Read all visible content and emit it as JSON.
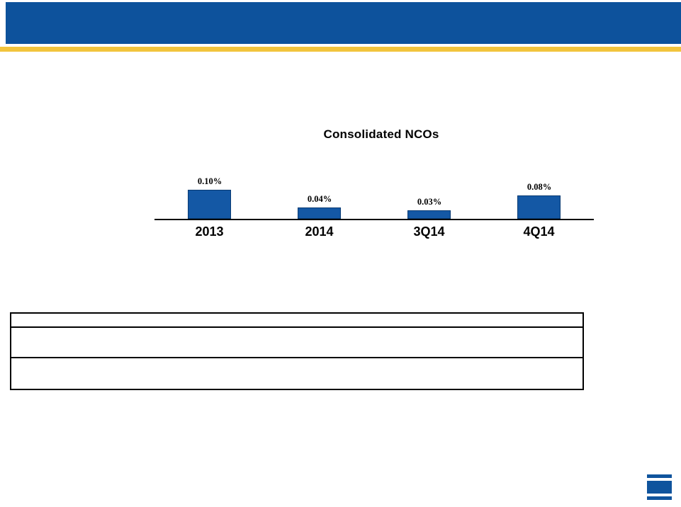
{
  "slide": {
    "header_color": "#0D529C",
    "stripe_color": "#F2C43D",
    "logo_color": "#0F549D"
  },
  "chart_data": {
    "type": "bar",
    "title": "Consolidated NCOs",
    "categories": [
      "2013",
      "2014",
      "3Q14",
      "4Q14"
    ],
    "values": [
      0.1,
      0.04,
      0.03,
      0.08
    ],
    "value_labels": [
      "0.10%",
      "0.04%",
      "0.03%",
      "0.08%"
    ],
    "unit": "percent",
    "ylim": [
      0,
      0.12
    ],
    "xlabel": "",
    "ylabel": "",
    "grid": false,
    "legend": false,
    "bar_color": "#1458A5",
    "bar_border_color": "#0A3B73",
    "axis_color": "#000000"
  },
  "table": {
    "rows": [
      [
        ""
      ],
      [
        ""
      ],
      [
        ""
      ]
    ]
  }
}
